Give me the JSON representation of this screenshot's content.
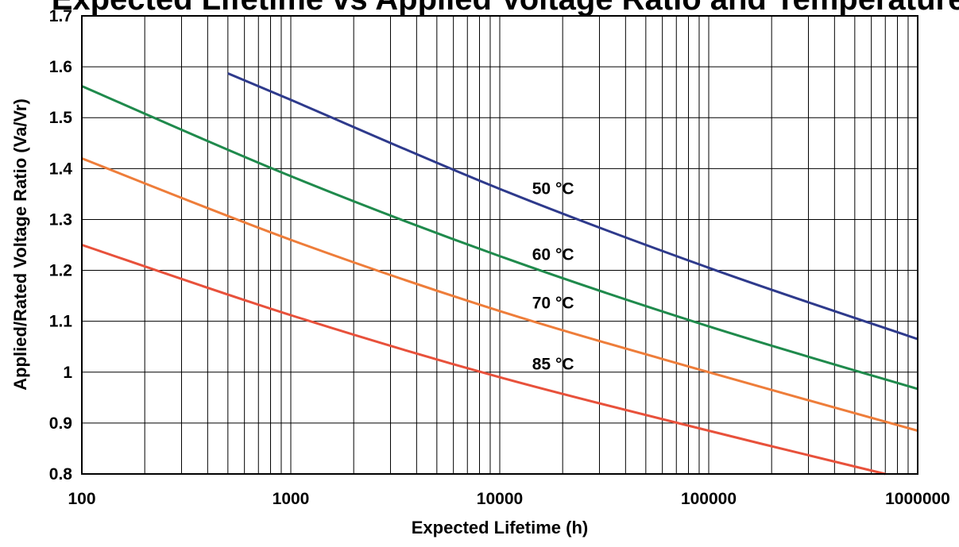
{
  "chart_data": {
    "type": "line",
    "title": "Expected Lifetime vs Applied Voltage Ratio and Temperature",
    "xlabel": "Expected Lifetime (h)",
    "ylabel": "Applied/Rated Voltage Ratio (Va/Vr)",
    "x_scale": "log",
    "xlim": [
      100,
      1000000
    ],
    "ylim": [
      0.8,
      1.7
    ],
    "x_ticks": [
      "100",
      "1000",
      "10000",
      "100000",
      "1000000"
    ],
    "y_ticks": [
      "0.8",
      "0.9",
      "1",
      "1.1",
      "1.2",
      "1.3",
      "1.4",
      "1.5",
      "1.6",
      "1.7"
    ],
    "grid": true,
    "legend": "none",
    "series": [
      {
        "name": "50 °C",
        "color": "#2e3a8c",
        "x": [
          500,
          1000,
          10000,
          100000,
          1000000
        ],
        "y": [
          1.587,
          1.535,
          1.36,
          1.205,
          1.065
        ]
      },
      {
        "name": "60 °C",
        "color": "#1f8a4c",
        "x": [
          100,
          1000,
          10000,
          100000,
          1000000
        ],
        "y": [
          1.562,
          1.385,
          1.228,
          1.09,
          0.967
        ]
      },
      {
        "name": "70 °C",
        "color": "#ee7d3a",
        "x": [
          100,
          1000,
          10000,
          100000,
          1000000
        ],
        "y": [
          1.42,
          1.26,
          1.12,
          1.0,
          0.885
        ]
      },
      {
        "name": "85 °C",
        "color": "#e8513b",
        "x": [
          100,
          1000,
          10000,
          100000,
          700000
        ],
        "y": [
          1.25,
          1.112,
          0.99,
          0.885,
          0.8
        ]
      }
    ],
    "annotations": [
      {
        "text": "50 °C",
        "x": 18000,
        "y": 1.35
      },
      {
        "text": "60 °C",
        "x": 18000,
        "y": 1.22
      },
      {
        "text": "70 °C",
        "x": 18000,
        "y": 1.125
      },
      {
        "text": "85 °C",
        "x": 18000,
        "y": 1.005
      }
    ]
  }
}
